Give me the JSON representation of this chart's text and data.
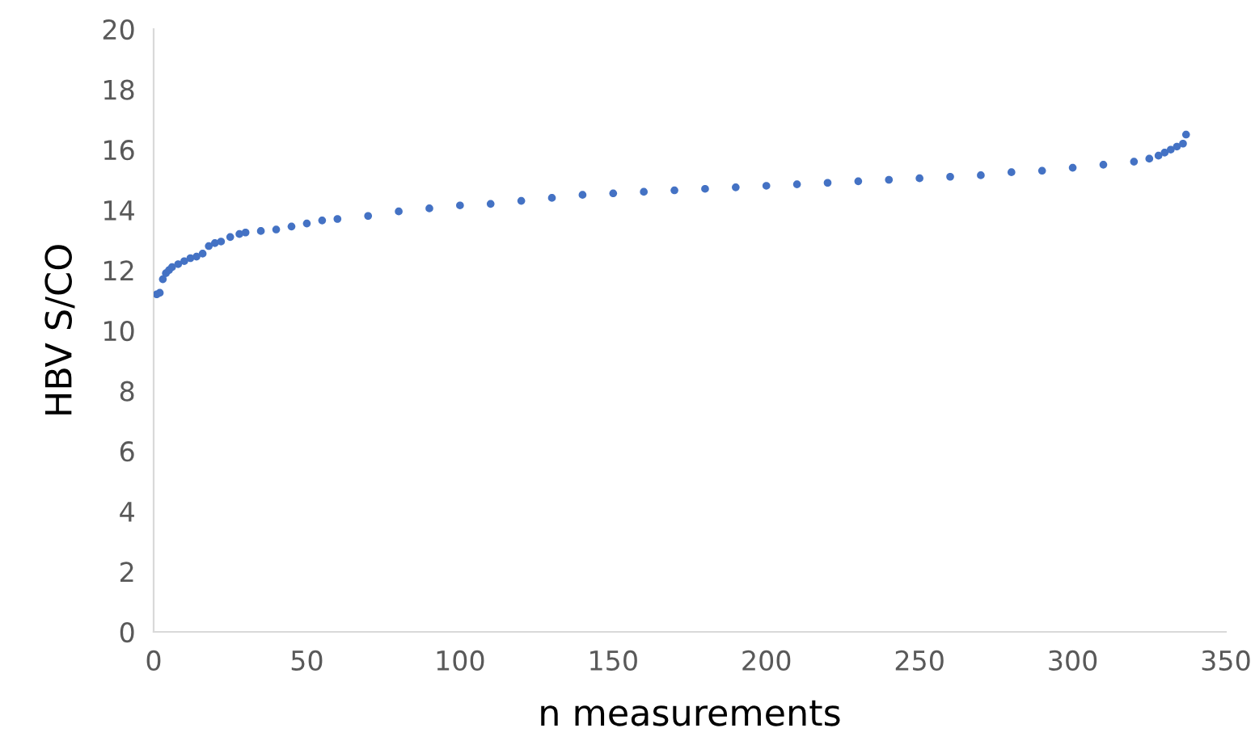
{
  "chart_data": {
    "type": "scatter",
    "xlabel": "n measurements",
    "ylabel": "HBV S/CO",
    "x": [
      1,
      2,
      3,
      4,
      5,
      6,
      8,
      10,
      12,
      14,
      16,
      18,
      20,
      22,
      25,
      28,
      30,
      35,
      40,
      45,
      50,
      55,
      60,
      70,
      80,
      90,
      100,
      110,
      120,
      130,
      140,
      150,
      160,
      170,
      180,
      190,
      200,
      210,
      220,
      230,
      240,
      250,
      260,
      270,
      280,
      290,
      300,
      310,
      320,
      325,
      328,
      330,
      332,
      334,
      336,
      337
    ],
    "series": [
      {
        "color": "#4472c4",
        "values": [
          11.2,
          11.25,
          11.7,
          11.9,
          12.0,
          12.1,
          12.2,
          12.3,
          12.4,
          12.45,
          12.55,
          12.8,
          12.9,
          12.95,
          13.1,
          13.2,
          13.25,
          13.3,
          13.35,
          13.45,
          13.55,
          13.65,
          13.7,
          13.8,
          13.95,
          14.05,
          14.15,
          14.2,
          14.3,
          14.4,
          14.5,
          14.55,
          14.6,
          14.65,
          14.7,
          14.75,
          14.8,
          14.85,
          14.9,
          14.95,
          15.0,
          15.05,
          15.1,
          15.15,
          15.25,
          15.3,
          15.4,
          15.5,
          15.6,
          15.7,
          15.8,
          15.9,
          16.0,
          16.1,
          16.2,
          16.5
        ]
      }
    ],
    "xlim": [
      0,
      350
    ],
    "xticks": [
      0,
      50,
      100,
      150,
      200,
      250,
      300,
      350
    ],
    "ylim": [
      0,
      20
    ],
    "yticks": [
      0,
      2,
      4,
      6,
      8,
      10,
      12,
      14,
      16,
      18,
      20
    ],
    "grid": false,
    "marker": "circle"
  }
}
